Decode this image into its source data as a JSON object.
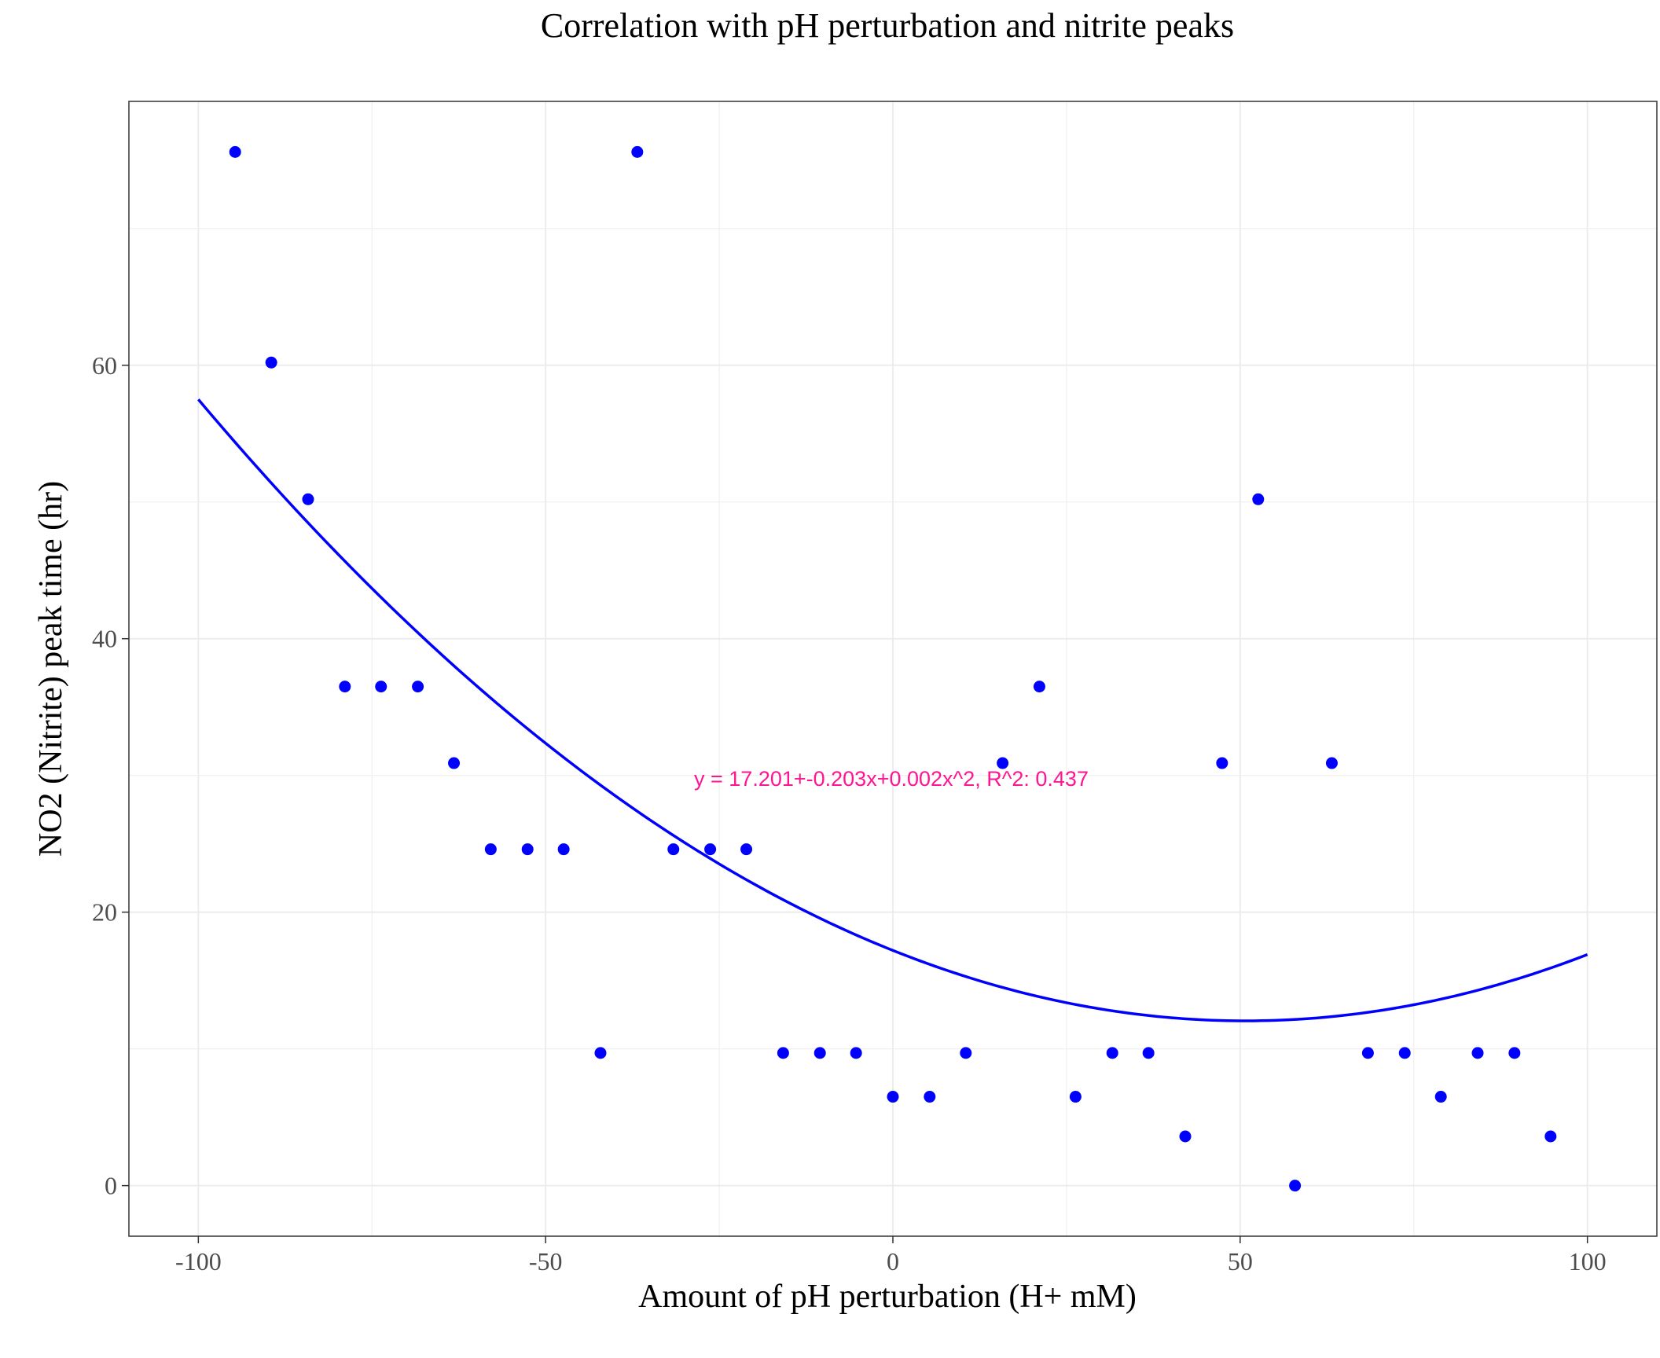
{
  "chart_data": {
    "type": "scatter",
    "title": "Correlation with pH perturbation and nitrite peaks",
    "xlabel": "Amount of pH perturbation (H+ mM)",
    "ylabel": "NO2 (Nitrite) peak time (hr)",
    "xlim": [
      -110,
      110
    ],
    "ylim": [
      -3.7,
      79.3
    ],
    "x_ticks": [
      -100,
      -50,
      0,
      50,
      100
    ],
    "x_tick_labels": [
      "-100",
      "-50",
      "0",
      "50",
      "100"
    ],
    "y_ticks": [
      0,
      20,
      40,
      60
    ],
    "y_tick_labels": [
      "0",
      "20",
      "40",
      "60"
    ],
    "grid": true,
    "legend": "none",
    "point_color": "#0000ff",
    "fit_color": "#0000ff",
    "annotation_color": "#ff1493",
    "series": [
      {
        "points": [
          {
            "x": -94.7,
            "y": 75.6
          },
          {
            "x": -89.5,
            "y": 60.2
          },
          {
            "x": -84.2,
            "y": 50.2
          },
          {
            "x": -78.9,
            "y": 36.5
          },
          {
            "x": -73.7,
            "y": 36.5
          },
          {
            "x": -68.4,
            "y": 36.5
          },
          {
            "x": -63.2,
            "y": 30.9
          },
          {
            "x": -57.9,
            "y": 24.6
          },
          {
            "x": -52.6,
            "y": 24.6
          },
          {
            "x": -47.4,
            "y": 24.6
          },
          {
            "x": -42.1,
            "y": 9.7
          },
          {
            "x": -36.8,
            "y": 75.6
          },
          {
            "x": -31.6,
            "y": 24.6
          },
          {
            "x": -26.3,
            "y": 24.6
          },
          {
            "x": -21.1,
            "y": 24.6
          },
          {
            "x": -15.8,
            "y": 9.7
          },
          {
            "x": -10.5,
            "y": 9.7
          },
          {
            "x": -5.3,
            "y": 9.7
          },
          {
            "x": 0.0,
            "y": 6.5
          },
          {
            "x": 5.3,
            "y": 6.5
          },
          {
            "x": 10.5,
            "y": 9.7
          },
          {
            "x": 15.8,
            "y": 30.9
          },
          {
            "x": 21.1,
            "y": 36.5
          },
          {
            "x": 26.3,
            "y": 6.5
          },
          {
            "x": 31.6,
            "y": 9.7
          },
          {
            "x": 36.8,
            "y": 9.7
          },
          {
            "x": 42.1,
            "y": 3.6
          },
          {
            "x": 47.4,
            "y": 30.9
          },
          {
            "x": 52.6,
            "y": 50.2
          },
          {
            "x": 57.9,
            "y": 0.0
          },
          {
            "x": 63.2,
            "y": 30.9
          },
          {
            "x": 68.4,
            "y": 9.7
          },
          {
            "x": 73.7,
            "y": 9.7
          },
          {
            "x": 78.9,
            "y": 6.5
          },
          {
            "x": 84.2,
            "y": 9.7
          },
          {
            "x": 89.5,
            "y": 9.7
          },
          {
            "x": 94.7,
            "y": 3.6
          }
        ]
      }
    ],
    "fit_curve": {
      "coefficients": [
        17.201,
        -0.203,
        0.002
      ],
      "x_range": [
        -100,
        100
      ]
    },
    "annotation": {
      "text": "y = 17.201+-0.203x+0.002x^2,  R^2: 0.437",
      "x": 0,
      "y": 29.8
    }
  }
}
